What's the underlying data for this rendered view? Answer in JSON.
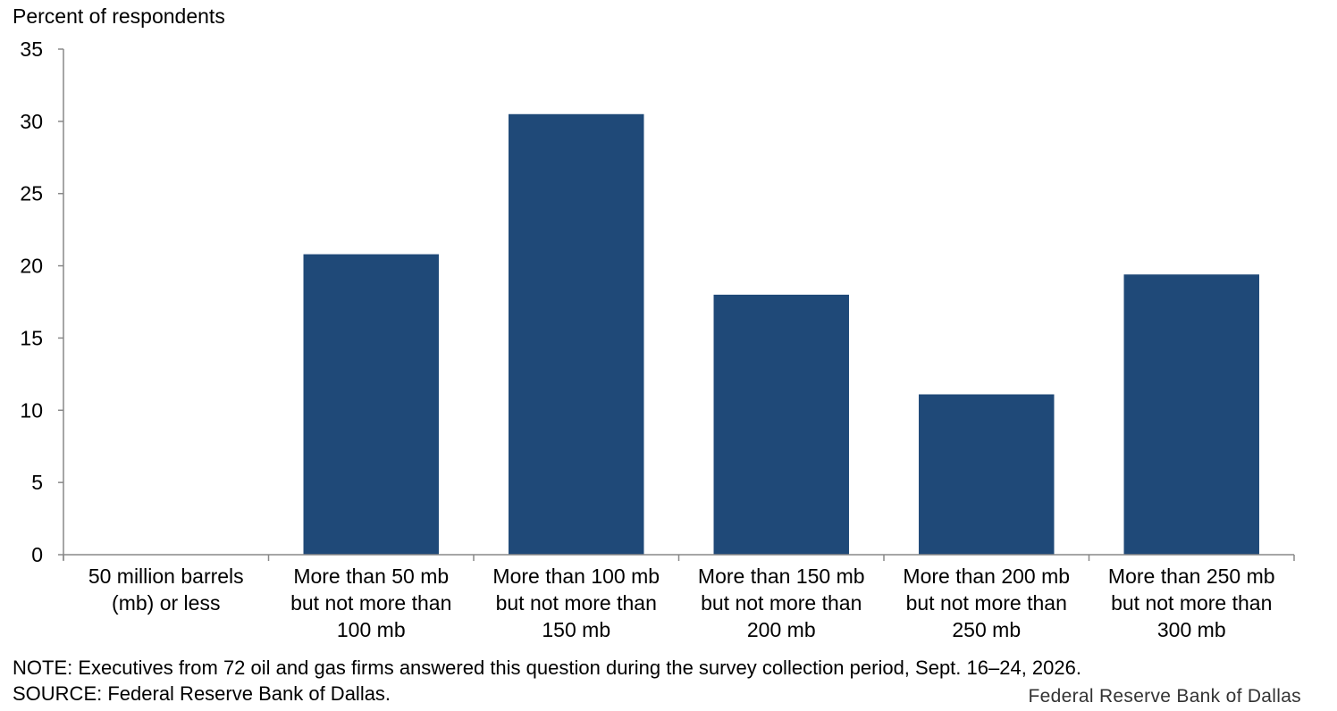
{
  "chart_data": {
    "type": "bar",
    "ylabel": "Percent of respondents",
    "ylim": [
      0,
      35
    ],
    "yticks": [
      0,
      5,
      10,
      15,
      20,
      25,
      30,
      35
    ],
    "categories": [
      [
        "50 million barrels",
        "(mb) or less"
      ],
      [
        "More than 50 mb",
        "but not more than",
        "100 mb"
      ],
      [
        "More than 100 mb",
        "but not more than",
        "150 mb"
      ],
      [
        "More than 150 mb",
        "but not more than",
        "200 mb"
      ],
      [
        "More than 200 mb",
        "but not more than",
        "250 mb"
      ],
      [
        "More than 250 mb",
        "but not more than",
        "300 mb"
      ]
    ],
    "values": [
      0,
      20.8,
      30.5,
      18.0,
      11.1,
      19.4
    ],
    "grid": false,
    "bar_color": "#1f4978"
  },
  "footer": {
    "note": "NOTE: Executives from 72 oil and gas firms answered this question during the survey collection period, Sept. 16–24, 2026.",
    "source": "SOURCE: Federal Reserve Bank of Dallas.",
    "brand": "Federal Reserve Bank of Dallas"
  }
}
